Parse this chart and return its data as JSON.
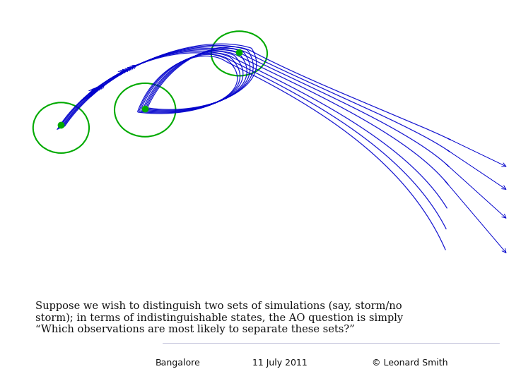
{
  "title_text": "Suppose we wish to distinguish two sets of simulations (say, storm/no\nstorm); in terms of indistinguishable states, the AO question is simply\n“Which observations are most likely to separate these sets?”",
  "footer_left": "Bangalore",
  "footer_mid": "11 July 2011",
  "footer_right": "© Leonard Smith",
  "line_color": "#0000CC",
  "circle_color": "#00AA00",
  "dot_color": "#00AA00",
  "n_trajectories": 7,
  "bg_color": "#ffffff"
}
